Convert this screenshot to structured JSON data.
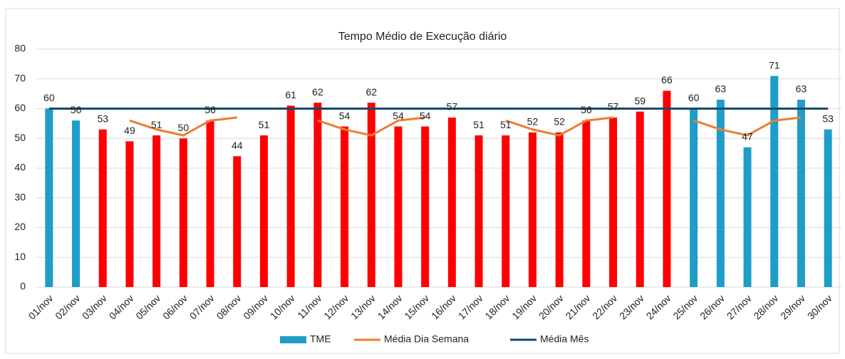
{
  "chart_data": {
    "type": "bar",
    "title": "Tempo Médio de Execução diário",
    "categories": [
      "01/nov",
      "02/nov",
      "03/nov",
      "04/nov",
      "05/nov",
      "06/nov",
      "07/nov",
      "08/nov",
      "09/nov",
      "10/nov",
      "11/nov",
      "12/nov",
      "13/nov",
      "14/nov",
      "15/nov",
      "16/nov",
      "17/nov",
      "18/nov",
      "19/nov",
      "20/nov",
      "21/nov",
      "22/nov",
      "23/nov",
      "24/nov",
      "25/nov",
      "26/nov",
      "27/nov",
      "28/nov",
      "29/nov",
      "30/nov"
    ],
    "series": [
      {
        "name": "TME",
        "type": "bar",
        "color": "#1e9dc8",
        "colors": [
          "#1e9dc8",
          "#1e9dc8",
          "#ff0000",
          "#ff0000",
          "#ff0000",
          "#ff0000",
          "#ff0000",
          "#ff0000",
          "#ff0000",
          "#ff0000",
          "#ff0000",
          "#ff0000",
          "#ff0000",
          "#ff0000",
          "#ff0000",
          "#ff0000",
          "#ff0000",
          "#ff0000",
          "#ff0000",
          "#ff0000",
          "#ff0000",
          "#ff0000",
          "#ff0000",
          "#ff0000",
          "#1e9dc8",
          "#1e9dc8",
          "#1e9dc8",
          "#1e9dc8",
          "#1e9dc8",
          "#1e9dc8"
        ],
        "values": [
          60,
          56,
          53,
          49,
          51,
          50,
          56,
          44,
          51,
          61,
          62,
          54,
          62,
          54,
          54,
          57,
          51,
          51,
          52,
          52,
          56,
          57,
          59,
          66,
          60,
          63,
          47,
          71,
          63,
          53
        ]
      },
      {
        "name": "Média Dia Semana",
        "type": "line",
        "color": "#ed7d31",
        "values": [
          null,
          null,
          null,
          56,
          53,
          51,
          56,
          57,
          null,
          null,
          56,
          53,
          51,
          56,
          57,
          null,
          null,
          56,
          53,
          51,
          56,
          57,
          null,
          null,
          56,
          53,
          51,
          56,
          57,
          null
        ]
      },
      {
        "name": "Média Mês",
        "type": "line",
        "color": "#124a6e",
        "values": [
          60,
          60,
          60,
          60,
          60,
          60,
          60,
          60,
          60,
          60,
          60,
          60,
          60,
          60,
          60,
          60,
          60,
          60,
          60,
          60,
          60,
          60,
          60,
          60,
          60,
          60,
          60,
          60,
          60,
          60
        ]
      }
    ],
    "ylim": [
      0,
      80
    ],
    "yticks": [
      0,
      10,
      20,
      30,
      40,
      50,
      60,
      70,
      80
    ],
    "grid": true,
    "legend": "bottom"
  }
}
